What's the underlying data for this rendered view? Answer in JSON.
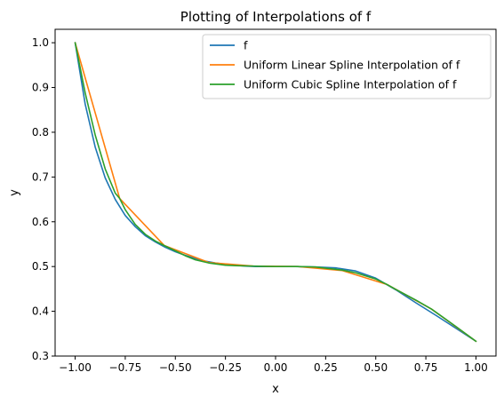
{
  "chart_data": {
    "type": "line",
    "title": "Plotting of Interpolations of f",
    "xlabel": "x",
    "ylabel": "y",
    "xlim": [
      -1.1,
      1.1
    ],
    "ylim": [
      0.3,
      1.03
    ],
    "x_ticks": [
      -1.0,
      -0.75,
      -0.5,
      -0.25,
      0.0,
      0.25,
      0.5,
      0.75,
      1.0
    ],
    "x_tick_labels": [
      "−1.00",
      "−0.75",
      "−0.50",
      "−0.25",
      "0.00",
      "0.25",
      "0.50",
      "0.75",
      "1.00"
    ],
    "y_ticks": [
      0.3,
      0.4,
      0.5,
      0.6,
      0.7,
      0.8,
      0.9,
      1.0
    ],
    "y_tick_labels": [
      "0.3",
      "0.4",
      "0.5",
      "0.6",
      "0.7",
      "0.8",
      "0.9",
      "1.0"
    ],
    "grid": false,
    "legend_position": "top-right",
    "series": [
      {
        "name": "f",
        "color": "#1f77b4",
        "x": [
          -1.0,
          -0.95,
          -0.9,
          -0.85,
          -0.8,
          -0.75,
          -0.7,
          -0.65,
          -0.6,
          -0.55,
          -0.5,
          -0.45,
          -0.4,
          -0.35,
          -0.3,
          -0.25,
          -0.2,
          -0.15,
          -0.1,
          -0.05,
          0.0,
          0.1,
          0.2,
          0.3,
          0.4,
          0.5,
          0.6,
          0.7,
          0.8,
          0.9,
          1.0
        ],
        "y": [
          1.0,
          0.863,
          0.767,
          0.698,
          0.65,
          0.614,
          0.589,
          0.569,
          0.555,
          0.543,
          0.533,
          0.525,
          0.518,
          0.512,
          0.508,
          0.505,
          0.503,
          0.501,
          0.5,
          0.5,
          0.5,
          0.5,
          0.499,
          0.497,
          0.49,
          0.474,
          0.448,
          0.419,
          0.391,
          0.362,
          0.333
        ]
      },
      {
        "name": "Uniform Linear Spline Interpolation of f",
        "color": "#ff7f0e",
        "x": [
          -1.0,
          -0.7778,
          -0.5556,
          -0.3333,
          -0.1111,
          0.1111,
          0.3333,
          0.5556,
          0.7778,
          1.0
        ],
        "y": [
          1.0,
          0.652,
          0.547,
          0.509,
          0.501,
          0.5,
          0.491,
          0.46,
          0.405,
          0.333
        ]
      },
      {
        "name": "Uniform Cubic Spline Interpolation of f",
        "color": "#2ca02c",
        "x": [
          -1.0,
          -0.95,
          -0.9,
          -0.85,
          -0.8,
          -0.7778,
          -0.75,
          -0.7,
          -0.65,
          -0.6,
          -0.5556,
          -0.5,
          -0.45,
          -0.4,
          -0.3333,
          -0.25,
          -0.2,
          -0.1111,
          0.0,
          0.1111,
          0.2,
          0.3333,
          0.4,
          0.5,
          0.5556,
          0.6,
          0.7,
          0.7778,
          0.85,
          0.9,
          1.0
        ],
        "y": [
          1.0,
          0.888,
          0.794,
          0.718,
          0.664,
          0.652,
          0.627,
          0.594,
          0.572,
          0.557,
          0.547,
          0.535,
          0.524,
          0.515,
          0.508,
          0.503,
          0.502,
          0.501,
          0.5,
          0.5,
          0.499,
          0.492,
          0.486,
          0.472,
          0.46,
          0.449,
          0.425,
          0.405,
          0.382,
          0.366,
          0.333
        ]
      }
    ]
  }
}
